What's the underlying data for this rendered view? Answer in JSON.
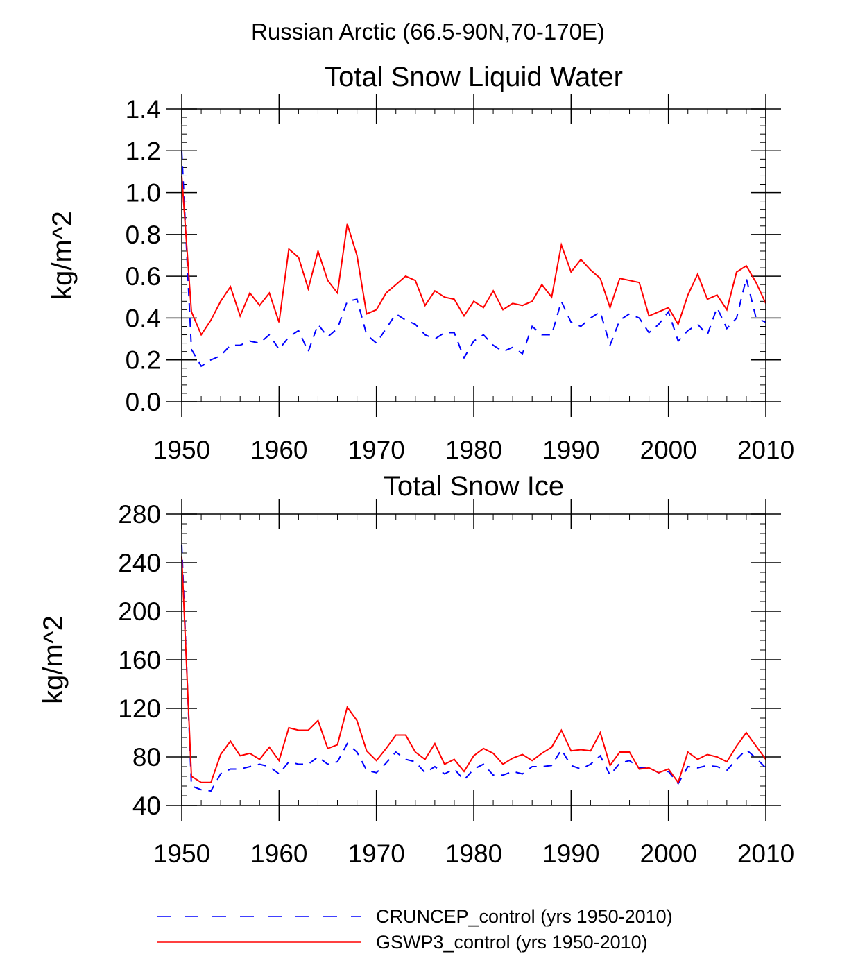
{
  "page_title": "Russian Arctic (66.5-90N,70-170E)",
  "legend": [
    {
      "label": "CRUNCEP_control (yrs 1950-2010)",
      "color": "#0000ff",
      "dash": "dashed"
    },
    {
      "label": "GSWP3_control (yrs 1950-2010)",
      "color": "#ff0000",
      "dash": "solid"
    }
  ],
  "chart_data": [
    {
      "type": "line",
      "title": "Total Snow Liquid Water",
      "xlabel": "",
      "ylabel": "kg/m^2",
      "xlim": [
        1950,
        2010
      ],
      "ylim": [
        0.0,
        1.4
      ],
      "xticks": [
        1950,
        1960,
        1970,
        1980,
        1990,
        2000,
        2010
      ],
      "xtick_labels": [
        "1950",
        "1960",
        "1970",
        "1980",
        "1990",
        "2000",
        "2010"
      ],
      "yticks": [
        0.0,
        0.2,
        0.4,
        0.6,
        0.8,
        1.0,
        1.2,
        1.4
      ],
      "ytick_labels": [
        "0.0",
        "0.2",
        "0.4",
        "0.6",
        "0.8",
        "1.0",
        "1.2",
        "1.4"
      ],
      "grid": false,
      "x": [
        1950,
        1951,
        1952,
        1953,
        1954,
        1955,
        1956,
        1957,
        1958,
        1959,
        1960,
        1961,
        1962,
        1963,
        1964,
        1965,
        1966,
        1967,
        1968,
        1969,
        1970,
        1971,
        1972,
        1973,
        1974,
        1975,
        1976,
        1977,
        1978,
        1979,
        1980,
        1981,
        1982,
        1983,
        1984,
        1985,
        1986,
        1987,
        1988,
        1989,
        1990,
        1991,
        1992,
        1993,
        1994,
        1995,
        1996,
        1997,
        1998,
        1999,
        2000,
        2001,
        2002,
        2003,
        2004,
        2005,
        2006,
        2007,
        2008,
        2009,
        2010
      ],
      "series": [
        {
          "name": "CRUNCEP_control (yrs 1950-2010)",
          "color": "#0000ff",
          "dash": "dashed",
          "values": [
            1.2,
            0.25,
            0.17,
            0.2,
            0.22,
            0.27,
            0.27,
            0.29,
            0.28,
            0.32,
            0.25,
            0.31,
            0.34,
            0.24,
            0.37,
            0.31,
            0.35,
            0.48,
            0.49,
            0.32,
            0.28,
            0.35,
            0.42,
            0.39,
            0.37,
            0.32,
            0.3,
            0.33,
            0.33,
            0.21,
            0.29,
            0.32,
            0.27,
            0.24,
            0.26,
            0.23,
            0.36,
            0.32,
            0.32,
            0.48,
            0.38,
            0.36,
            0.4,
            0.43,
            0.27,
            0.39,
            0.42,
            0.4,
            0.33,
            0.37,
            0.43,
            0.29,
            0.34,
            0.37,
            0.32,
            0.45,
            0.35,
            0.4,
            0.59,
            0.4,
            0.38
          ]
        },
        {
          "name": "GSWP3_control (yrs 1950-2010)",
          "color": "#ff0000",
          "dash": "solid",
          "values": [
            1.08,
            0.43,
            0.32,
            0.39,
            0.48,
            0.55,
            0.41,
            0.52,
            0.46,
            0.52,
            0.38,
            0.73,
            0.69,
            0.54,
            0.72,
            0.58,
            0.52,
            0.85,
            0.7,
            0.42,
            0.44,
            0.52,
            0.56,
            0.6,
            0.58,
            0.46,
            0.53,
            0.5,
            0.49,
            0.41,
            0.48,
            0.45,
            0.53,
            0.44,
            0.47,
            0.46,
            0.48,
            0.56,
            0.5,
            0.75,
            0.62,
            0.68,
            0.63,
            0.59,
            0.45,
            0.59,
            0.58,
            0.57,
            0.41,
            0.43,
            0.45,
            0.37,
            0.51,
            0.61,
            0.49,
            0.51,
            0.44,
            0.62,
            0.65,
            0.57,
            0.47
          ]
        }
      ]
    },
    {
      "type": "line",
      "title": "Total Snow Ice",
      "xlabel": "",
      "ylabel": "kg/m^2",
      "xlim": [
        1950,
        2010
      ],
      "ylim": [
        40,
        280
      ],
      "xticks": [
        1950,
        1960,
        1970,
        1980,
        1990,
        2000,
        2010
      ],
      "xtick_labels": [
        "1950",
        "1960",
        "1970",
        "1980",
        "1990",
        "2000",
        "2010"
      ],
      "yticks": [
        40,
        80,
        120,
        160,
        200,
        240,
        280
      ],
      "ytick_labels": [
        "40",
        "80",
        "120",
        "160",
        "200",
        "240",
        "280"
      ],
      "grid": false,
      "x": [
        1950,
        1951,
        1952,
        1953,
        1954,
        1955,
        1956,
        1957,
        1958,
        1959,
        1960,
        1961,
        1962,
        1963,
        1964,
        1965,
        1966,
        1967,
        1968,
        1969,
        1970,
        1971,
        1972,
        1973,
        1974,
        1975,
        1976,
        1977,
        1978,
        1979,
        1980,
        1981,
        1982,
        1983,
        1984,
        1985,
        1986,
        1987,
        1988,
        1989,
        1990,
        1991,
        1992,
        1993,
        1994,
        1995,
        1996,
        1997,
        1998,
        1999,
        2000,
        2001,
        2002,
        2003,
        2004,
        2005,
        2006,
        2007,
        2008,
        2009,
        2010
      ],
      "series": [
        {
          "name": "CRUNCEP_control (yrs 1950-2010)",
          "color": "#0000ff",
          "dash": "dashed",
          "values": [
            255,
            56,
            53,
            52,
            66,
            70,
            70,
            72,
            74,
            72,
            66,
            76,
            74,
            74,
            80,
            74,
            76,
            91,
            84,
            69,
            67,
            75,
            84,
            78,
            76,
            67,
            72,
            66,
            70,
            61,
            70,
            74,
            65,
            65,
            68,
            66,
            72,
            72,
            73,
            86,
            73,
            70,
            74,
            81,
            65,
            75,
            77,
            71,
            71,
            67,
            68,
            58,
            72,
            71,
            73,
            72,
            69,
            78,
            86,
            79,
            71
          ]
        },
        {
          "name": "GSWP3_control (yrs 1950-2010)",
          "color": "#ff0000",
          "dash": "solid",
          "values": [
            245,
            64,
            59,
            59,
            82,
            93,
            81,
            83,
            78,
            88,
            77,
            104,
            102,
            102,
            110,
            87,
            90,
            121,
            110,
            85,
            77,
            87,
            98,
            98,
            84,
            78,
            91,
            74,
            78,
            68,
            81,
            87,
            83,
            74,
            79,
            82,
            77,
            83,
            88,
            102,
            85,
            86,
            85,
            100,
            73,
            84,
            84,
            70,
            71,
            67,
            70,
            59,
            84,
            78,
            82,
            80,
            76,
            89,
            100,
            89,
            78
          ]
        }
      ]
    }
  ]
}
